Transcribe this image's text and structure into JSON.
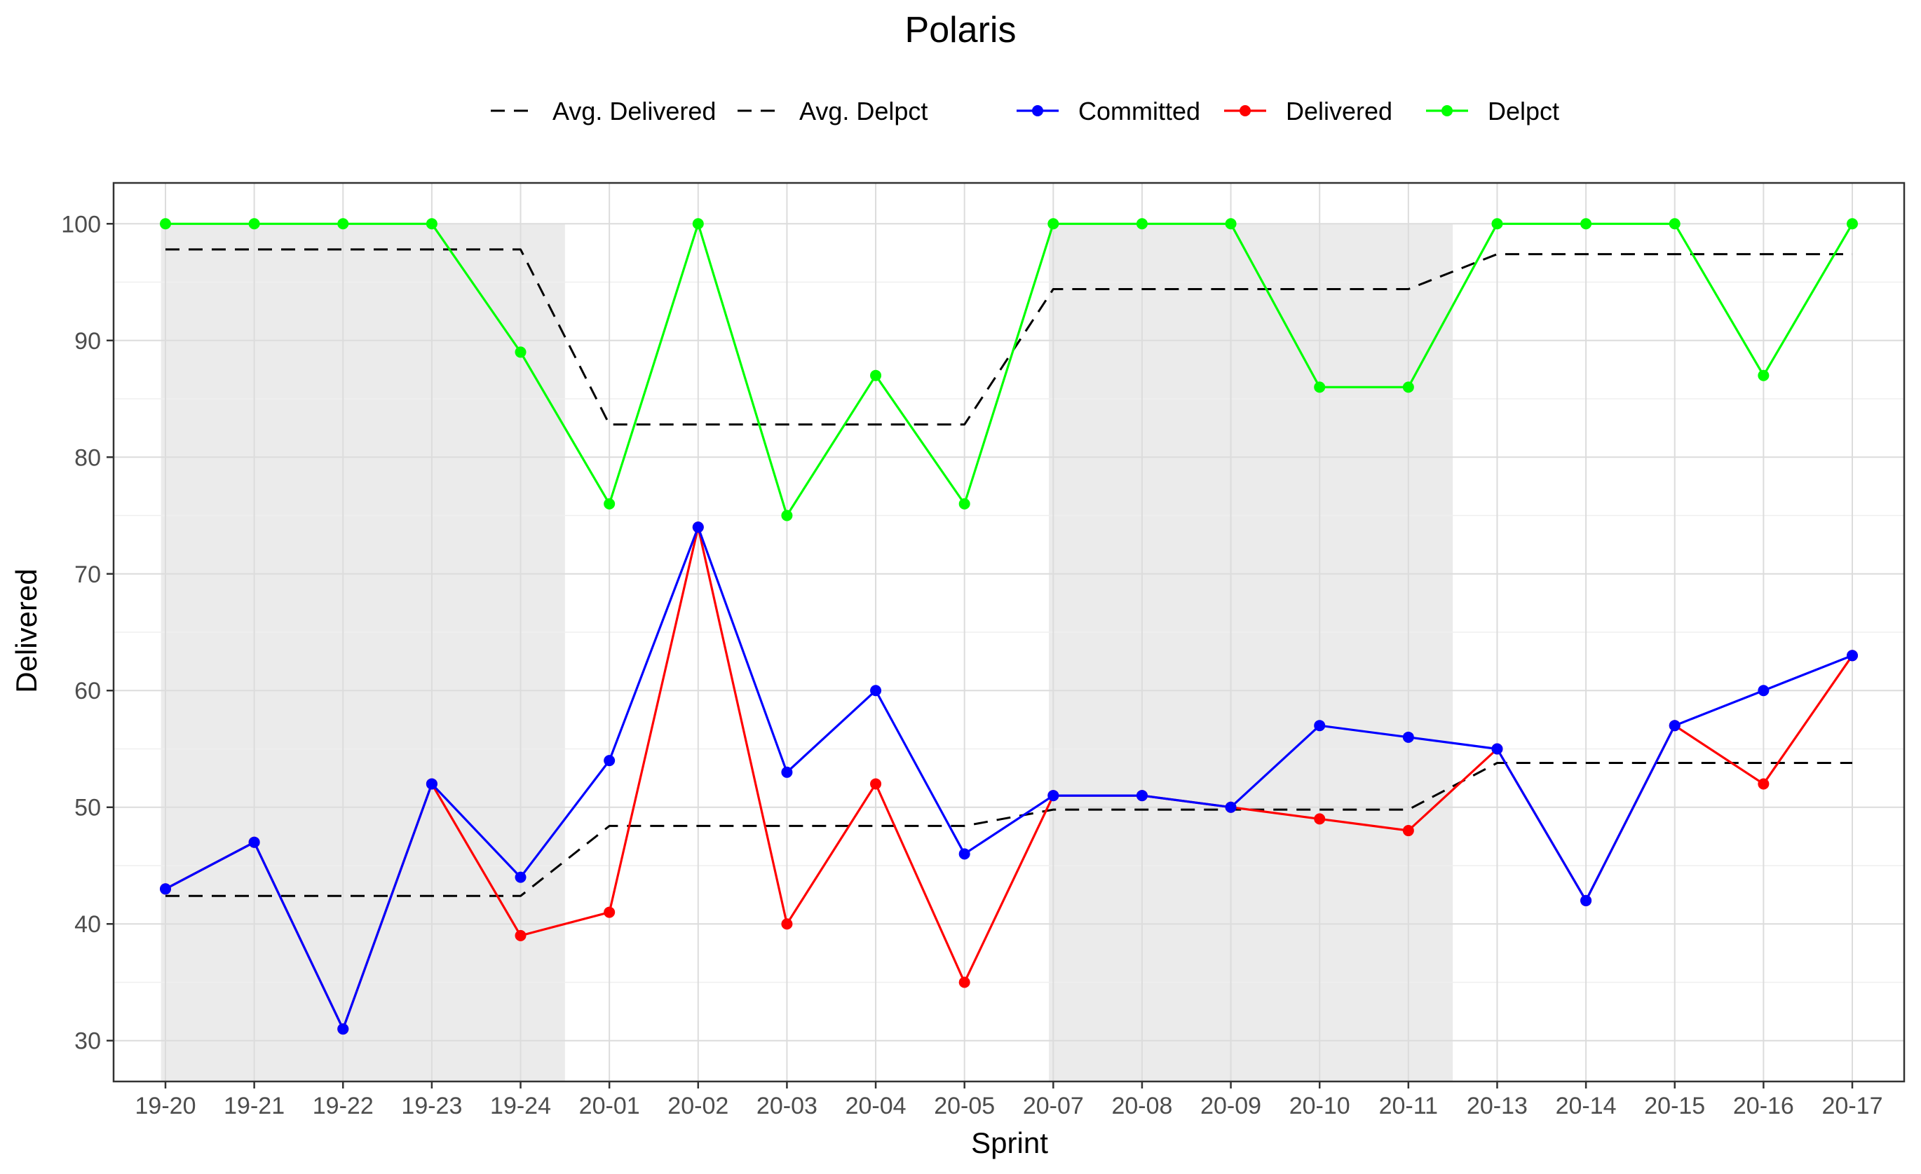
{
  "chart_data": {
    "type": "line",
    "title": "Polaris",
    "xlabel": "Sprint",
    "ylabel": "Delivered",
    "ylim": [
      26.5,
      103.5
    ],
    "yticks": [
      30,
      40,
      50,
      60,
      70,
      80,
      90,
      100
    ],
    "grid": true,
    "legend_position": "top",
    "categories": [
      "19-20",
      "19-21",
      "19-22",
      "19-23",
      "19-24",
      "20-01",
      "20-02",
      "20-03",
      "20-04",
      "20-05",
      "20-07",
      "20-08",
      "20-09",
      "20-10",
      "20-11",
      "20-13",
      "20-14",
      "20-15",
      "20-16",
      "20-17"
    ],
    "shaded_regions": [
      {
        "from": "19-20",
        "to": "19-24"
      },
      {
        "from": "20-07",
        "to": "20-11"
      }
    ],
    "series": [
      {
        "name": "Committed",
        "color": "#0000ff",
        "style": "line-points",
        "values": [
          43,
          47,
          31,
          52,
          44,
          54,
          74,
          53,
          60,
          46,
          51,
          51,
          50,
          57,
          56,
          55,
          42,
          57,
          60,
          63
        ]
      },
      {
        "name": "Delivered",
        "color": "#ff0000",
        "style": "line-points",
        "values": [
          43,
          47,
          31,
          52,
          39,
          41,
          74,
          40,
          52,
          35,
          51,
          51,
          50,
          49,
          48,
          55,
          42,
          57,
          52,
          63
        ]
      },
      {
        "name": "Delpct",
        "color": "#00ff00",
        "style": "line-points",
        "values": [
          100,
          100,
          100,
          100,
          89,
          76,
          100,
          75,
          87,
          76,
          100,
          100,
          100,
          86,
          86,
          100,
          100,
          100,
          87,
          100
        ]
      },
      {
        "name": "Avg. Delivered",
        "color": "#000000",
        "style": "dashed",
        "values": [
          42.4,
          42.4,
          42.4,
          42.4,
          42.4,
          48.4,
          48.4,
          48.4,
          48.4,
          48.4,
          49.8,
          49.8,
          49.8,
          49.8,
          49.8,
          53.8,
          53.8,
          53.8,
          53.8,
          53.8
        ]
      },
      {
        "name": "Avg. Delpct",
        "color": "#000000",
        "style": "dashed",
        "values": [
          97.8,
          97.8,
          97.8,
          97.8,
          97.8,
          82.8,
          82.8,
          82.8,
          82.8,
          82.8,
          94.4,
          94.4,
          94.4,
          94.4,
          94.4,
          97.4,
          97.4,
          97.4,
          97.4,
          97.4
        ]
      }
    ]
  },
  "legend": {
    "dashed": [
      "Avg. Delivered",
      "Avg. Delpct"
    ],
    "solid": [
      "Committed",
      "Delivered",
      "Delpct"
    ]
  }
}
